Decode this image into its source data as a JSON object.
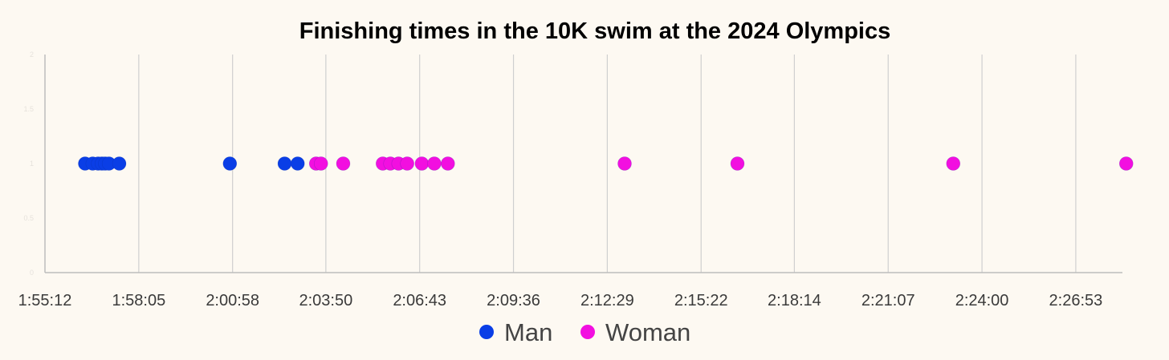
{
  "chart_data": {
    "type": "scatter",
    "title": "Finishing times in the 10K swim at the 2024 Olympics",
    "xlabel": "",
    "ylabel": "",
    "x_unit": "h:mm:ss",
    "xlim": [
      "1:55:12",
      "2:28:19"
    ],
    "x_ticks": [
      "1:55:12",
      "1:58:05",
      "2:00:58",
      "2:03:50",
      "2:06:43",
      "2:09:36",
      "2:12:29",
      "2:15:22",
      "2:18:14",
      "2:21:07",
      "2:24:00",
      "2:26:53"
    ],
    "ylim": [
      0,
      2
    ],
    "y_ticks": [
      "0",
      "0.5",
      "1",
      "1.5",
      "2"
    ],
    "grid": "vertical",
    "legend_position": "bottom",
    "series": [
      {
        "name": "Man",
        "color": "#0a3ee6",
        "points": [
          {
            "x": "1:56:26",
            "y": 1
          },
          {
            "x": "1:56:40",
            "y": 1
          },
          {
            "x": "1:56:50",
            "y": 1
          },
          {
            "x": "1:56:57",
            "y": 1
          },
          {
            "x": "1:57:03",
            "y": 1
          },
          {
            "x": "1:57:10",
            "y": 1
          },
          {
            "x": "1:57:29",
            "y": 1
          },
          {
            "x": "2:00:53",
            "y": 1
          },
          {
            "x": "2:02:34",
            "y": 1
          },
          {
            "x": "2:02:58",
            "y": 1
          }
        ]
      },
      {
        "name": "Woman",
        "color": "#f20fe0",
        "points": [
          {
            "x": "2:03:32",
            "y": 1
          },
          {
            "x": "2:03:41",
            "y": 1
          },
          {
            "x": "2:04:22",
            "y": 1
          },
          {
            "x": "2:05:35",
            "y": 1
          },
          {
            "x": "2:05:49",
            "y": 1
          },
          {
            "x": "2:06:04",
            "y": 1
          },
          {
            "x": "2:06:20",
            "y": 1
          },
          {
            "x": "2:06:47",
            "y": 1
          },
          {
            "x": "2:07:10",
            "y": 1
          },
          {
            "x": "2:07:35",
            "y": 1
          },
          {
            "x": "2:13:01",
            "y": 1
          },
          {
            "x": "2:16:29",
            "y": 1
          },
          {
            "x": "2:23:07",
            "y": 1
          },
          {
            "x": "2:28:26",
            "y": 1
          }
        ]
      }
    ]
  }
}
